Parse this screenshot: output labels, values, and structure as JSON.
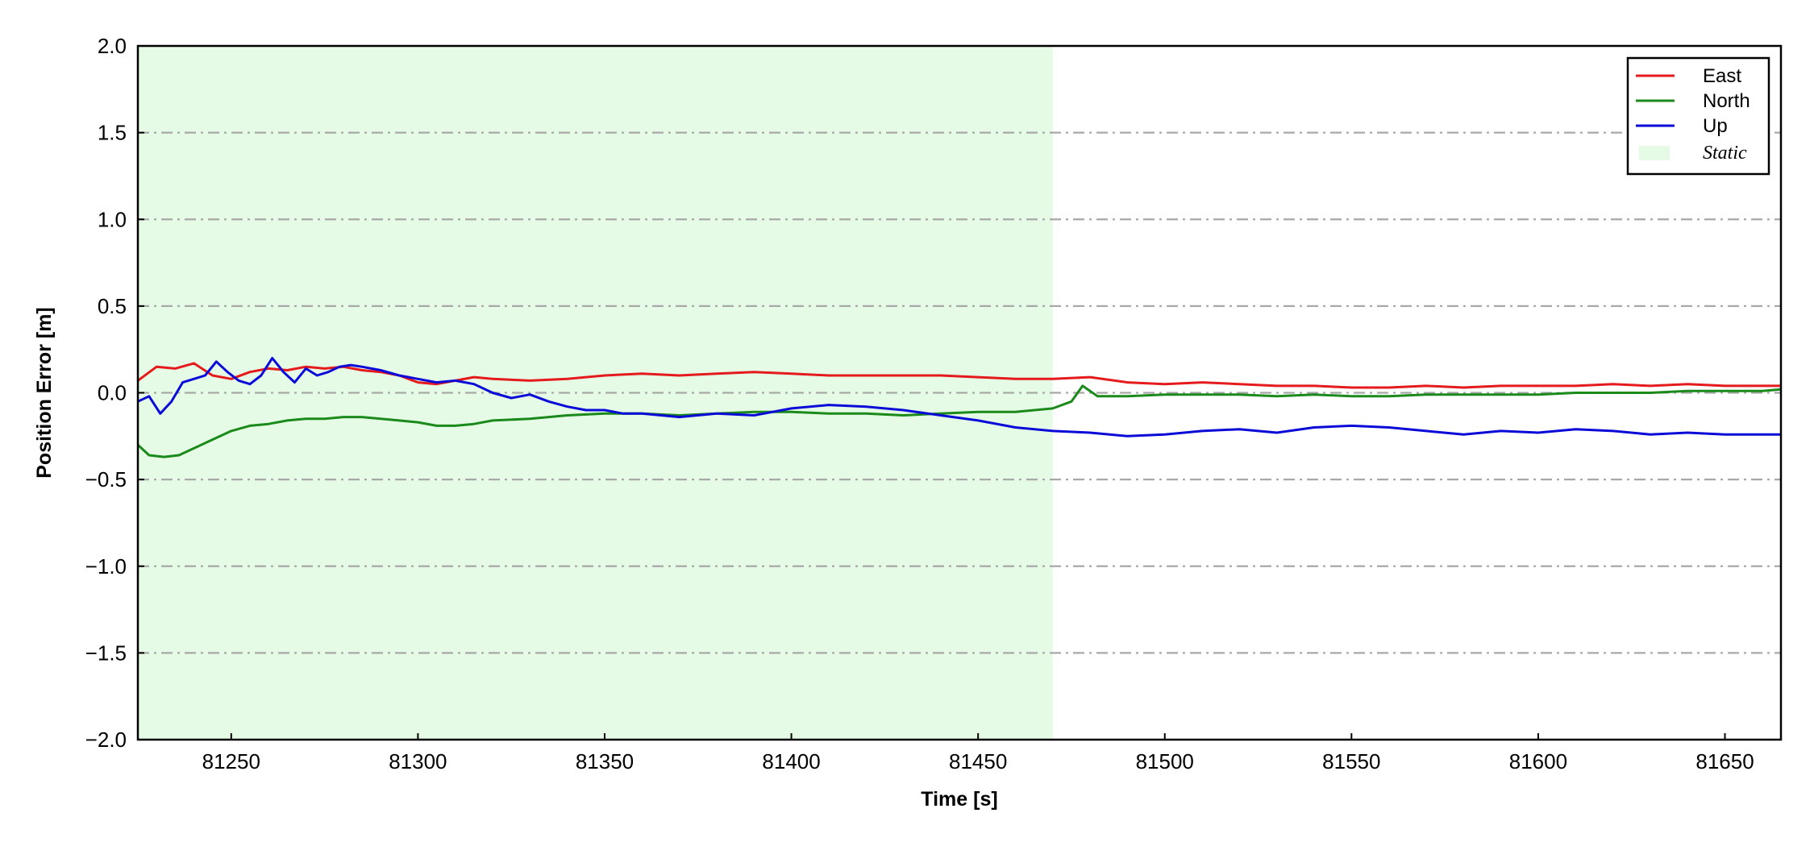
{
  "chart_data": {
    "type": "line",
    "xlabel": "Time [s]",
    "ylabel": "Position Error [m]",
    "xlim": [
      81225,
      81665
    ],
    "ylim": [
      -2.0,
      2.0
    ],
    "xticks": [
      81250,
      81300,
      81350,
      81400,
      81450,
      81500,
      81550,
      81600,
      81650
    ],
    "yticks": [
      -2.0,
      -1.5,
      -1.0,
      -0.5,
      0.0,
      0.5,
      1.0,
      1.5,
      2.0
    ],
    "ytick_labels": [
      "−2.0",
      "−1.5",
      "−1.0",
      "−0.5",
      "0.0",
      "0.5",
      "1.0",
      "1.5",
      "2.0"
    ],
    "xtick_labels": [
      "81250",
      "81300",
      "81350",
      "81400",
      "81450",
      "81500",
      "81550",
      "81600",
      "81650"
    ],
    "grid": "horizontal dash-dot",
    "legend_position": "top-right",
    "static_region": {
      "label": "Static",
      "x_start": 81225,
      "x_end": 81470,
      "color": "#e6fbe6"
    },
    "series": [
      {
        "name": "East",
        "color": "#e41a1c",
        "x": [
          81225,
          81230,
          81235,
          81240,
          81245,
          81250,
          81255,
          81260,
          81265,
          81270,
          81275,
          81280,
          81285,
          81290,
          81295,
          81300,
          81305,
          81310,
          81315,
          81320,
          81330,
          81340,
          81350,
          81360,
          81370,
          81380,
          81390,
          81400,
          81410,
          81420,
          81430,
          81440,
          81450,
          81460,
          81470,
          81480,
          81490,
          81500,
          81510,
          81520,
          81530,
          81540,
          81550,
          81560,
          81570,
          81580,
          81590,
          81600,
          81610,
          81620,
          81630,
          81640,
          81650,
          81660,
          81665
        ],
        "y": [
          0.07,
          0.15,
          0.14,
          0.17,
          0.1,
          0.08,
          0.12,
          0.14,
          0.13,
          0.15,
          0.14,
          0.15,
          0.13,
          0.12,
          0.1,
          0.06,
          0.05,
          0.07,
          0.09,
          0.08,
          0.07,
          0.08,
          0.1,
          0.11,
          0.1,
          0.11,
          0.12,
          0.11,
          0.1,
          0.1,
          0.1,
          0.1,
          0.09,
          0.08,
          0.08,
          0.09,
          0.06,
          0.05,
          0.06,
          0.05,
          0.04,
          0.04,
          0.03,
          0.03,
          0.04,
          0.03,
          0.04,
          0.04,
          0.04,
          0.05,
          0.04,
          0.05,
          0.04,
          0.04,
          0.04
        ]
      },
      {
        "name": "North",
        "color": "#1a8a1a",
        "x": [
          81225,
          81228,
          81232,
          81236,
          81240,
          81245,
          81250,
          81255,
          81260,
          81265,
          81270,
          81275,
          81280,
          81285,
          81290,
          81295,
          81300,
          81305,
          81310,
          81315,
          81320,
          81330,
          81340,
          81350,
          81360,
          81370,
          81380,
          81390,
          81400,
          81410,
          81420,
          81430,
          81440,
          81450,
          81460,
          81470,
          81475,
          81478,
          81482,
          81490,
          81500,
          81510,
          81520,
          81530,
          81540,
          81550,
          81560,
          81570,
          81580,
          81590,
          81600,
          81610,
          81620,
          81630,
          81640,
          81650,
          81660,
          81665
        ],
        "y": [
          -0.3,
          -0.36,
          -0.37,
          -0.36,
          -0.32,
          -0.27,
          -0.22,
          -0.19,
          -0.18,
          -0.16,
          -0.15,
          -0.15,
          -0.14,
          -0.14,
          -0.15,
          -0.16,
          -0.17,
          -0.19,
          -0.19,
          -0.18,
          -0.16,
          -0.15,
          -0.13,
          -0.12,
          -0.12,
          -0.13,
          -0.12,
          -0.11,
          -0.11,
          -0.12,
          -0.12,
          -0.13,
          -0.12,
          -0.11,
          -0.11,
          -0.09,
          -0.05,
          0.04,
          -0.02,
          -0.02,
          -0.01,
          -0.01,
          -0.01,
          -0.02,
          -0.01,
          -0.02,
          -0.02,
          -0.01,
          -0.01,
          -0.01,
          -0.01,
          0.0,
          0.0,
          0.0,
          0.01,
          0.01,
          0.01,
          0.02
        ]
      },
      {
        "name": "Up",
        "color": "#0a0ad8",
        "x": [
          81225,
          81228,
          81231,
          81234,
          81237,
          81240,
          81243,
          81246,
          81249,
          81252,
          81255,
          81258,
          81261,
          81264,
          81267,
          81270,
          81273,
          81276,
          81279,
          81282,
          81285,
          81290,
          81295,
          81300,
          81305,
          81310,
          81315,
          81320,
          81325,
          81330,
          81335,
          81340,
          81345,
          81350,
          81355,
          81360,
          81370,
          81380,
          81390,
          81400,
          81410,
          81420,
          81430,
          81440,
          81450,
          81460,
          81470,
          81480,
          81490,
          81500,
          81510,
          81520,
          81530,
          81540,
          81550,
          81560,
          81570,
          81580,
          81590,
          81600,
          81610,
          81620,
          81630,
          81640,
          81650,
          81660,
          81665
        ],
        "y": [
          -0.05,
          -0.02,
          -0.12,
          -0.05,
          0.06,
          0.08,
          0.1,
          0.18,
          0.12,
          0.07,
          0.05,
          0.1,
          0.2,
          0.12,
          0.06,
          0.14,
          0.1,
          0.12,
          0.15,
          0.16,
          0.15,
          0.13,
          0.1,
          0.08,
          0.06,
          0.07,
          0.05,
          0.0,
          -0.03,
          -0.01,
          -0.05,
          -0.08,
          -0.1,
          -0.1,
          -0.12,
          -0.12,
          -0.14,
          -0.12,
          -0.13,
          -0.09,
          -0.07,
          -0.08,
          -0.1,
          -0.13,
          -0.16,
          -0.2,
          -0.22,
          -0.23,
          -0.25,
          -0.24,
          -0.22,
          -0.21,
          -0.23,
          -0.2,
          -0.19,
          -0.2,
          -0.22,
          -0.24,
          -0.22,
          -0.23,
          -0.21,
          -0.22,
          -0.24,
          -0.23,
          -0.24,
          -0.24,
          -0.24
        ]
      }
    ]
  }
}
